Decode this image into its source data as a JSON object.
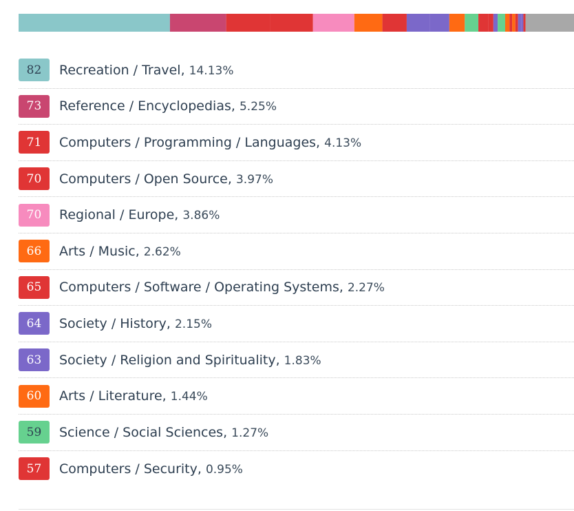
{
  "chart_data": {
    "type": "bar",
    "categories": [
      "Recreation / Travel",
      "Reference / Encyclopedias",
      "Computers / Programming / Languages",
      "Computers / Open Source",
      "Regional / Europe",
      "Arts / Music",
      "Computers / Software / Operating Systems",
      "Society / History",
      "Society / Religion and Spirituality",
      "Arts / Literature",
      "Science / Social Sciences",
      "Computers / Security"
    ],
    "scores": [
      "82",
      "73",
      "71",
      "70",
      "70",
      "66",
      "65",
      "64",
      "63",
      "60",
      "59",
      "57"
    ],
    "percents": [
      "14.13%",
      "5.25%",
      "4.13%",
      "3.97%",
      "3.86%",
      "2.62%",
      "2.27%",
      "2.15%",
      "1.83%",
      "1.44%",
      "1.27%",
      "0.95%"
    ],
    "values": [
      14.13,
      5.25,
      4.13,
      3.97,
      3.86,
      2.62,
      2.27,
      2.15,
      1.83,
      1.44,
      1.27,
      0.95
    ],
    "colors": [
      "#8ac7c9",
      "#c94670",
      "#e03535",
      "#e03535",
      "#f78bbe",
      "#ff6a13",
      "#e03535",
      "#7b68c9",
      "#7b68c9",
      "#ff6a13",
      "#66d18f",
      "#e03535"
    ],
    "dark_text": [
      true,
      false,
      false,
      false,
      false,
      false,
      false,
      false,
      false,
      false,
      true,
      false
    ],
    "extra_segments": [
      {
        "value": 0.45,
        "color": "#e03535"
      },
      {
        "value": 0.4,
        "color": "#7b68c9"
      },
      {
        "value": 0.7,
        "color": "#66d18f"
      },
      {
        "value": 0.4,
        "color": "#ff6a13"
      },
      {
        "value": 0.25,
        "color": "#e03535"
      },
      {
        "value": 0.3,
        "color": "#ff6a13"
      },
      {
        "value": 0.25,
        "color": "#e03535"
      },
      {
        "value": 0.3,
        "color": "#7b68c9"
      },
      {
        "value": 0.2,
        "color": "#7b68c9"
      },
      {
        "value": 0.2,
        "color": "#e03535"
      }
    ],
    "remainder_color": "#a8a8a8",
    "total": 100
  }
}
